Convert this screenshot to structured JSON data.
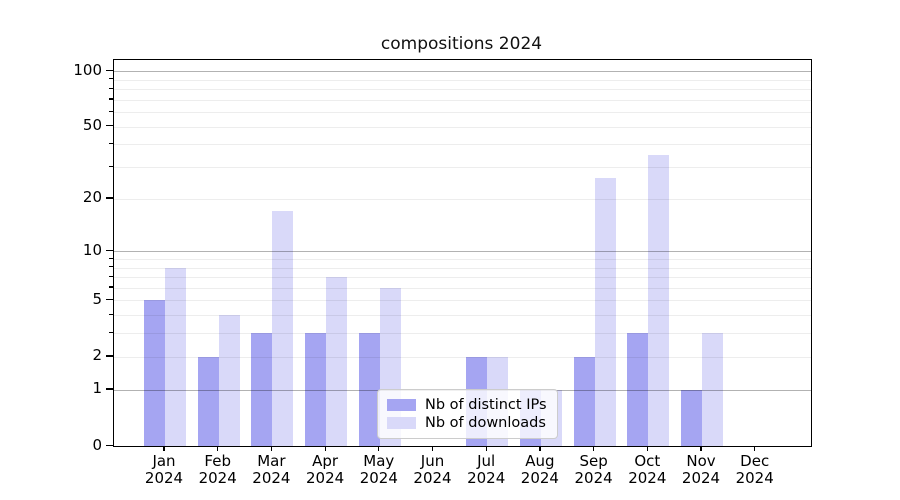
{
  "title": "compositions 2024",
  "chart_data": {
    "type": "bar",
    "title": "compositions 2024",
    "categories": [
      "Jan 2024",
      "Feb 2024",
      "Mar 2024",
      "Apr 2024",
      "May 2024",
      "Jun 2024",
      "Jul 2024",
      "Aug 2024",
      "Sep 2024",
      "Oct 2024",
      "Nov 2024",
      "Dec 2024"
    ],
    "month_labels": [
      "Jan",
      "Feb",
      "Mar",
      "Apr",
      "May",
      "Jun",
      "Jul",
      "Aug",
      "Sep",
      "Oct",
      "Nov",
      "Dec"
    ],
    "year_label": "2024",
    "series": [
      {
        "name": "Nb of distinct IPs",
        "color": "#a5a5f2",
        "values": [
          5,
          2,
          3,
          3,
          3,
          0,
          2,
          1,
          2,
          3,
          1,
          0
        ]
      },
      {
        "name": "Nb of downloads",
        "color": "#d9d9f9",
        "values": [
          8,
          4,
          17,
          7,
          6,
          0,
          2,
          1,
          26,
          35,
          3,
          0
        ]
      }
    ],
    "xlabel": "",
    "ylabel": "",
    "yscale": "log1p",
    "ylim": [
      0,
      116
    ],
    "yticks": [
      0,
      1,
      2,
      5,
      10,
      20,
      50,
      100
    ],
    "major_gridlines": [
      1,
      10,
      100
    ],
    "minor_gridlines": [
      2,
      3,
      4,
      5,
      6,
      7,
      8,
      9,
      20,
      30,
      40,
      50,
      60,
      70,
      80,
      90
    ],
    "grid": "horizontal",
    "legend_position": "lower center inside plot"
  },
  "colors": {
    "background": "#ffffff",
    "spine": "#000000",
    "major_grid": "#b2b2b2",
    "minor_grid": "#ececec",
    "bar_distinct_ips": "#a5a5f2",
    "bar_downloads": "#d9d9f9",
    "legend_border": "#cccccc"
  }
}
